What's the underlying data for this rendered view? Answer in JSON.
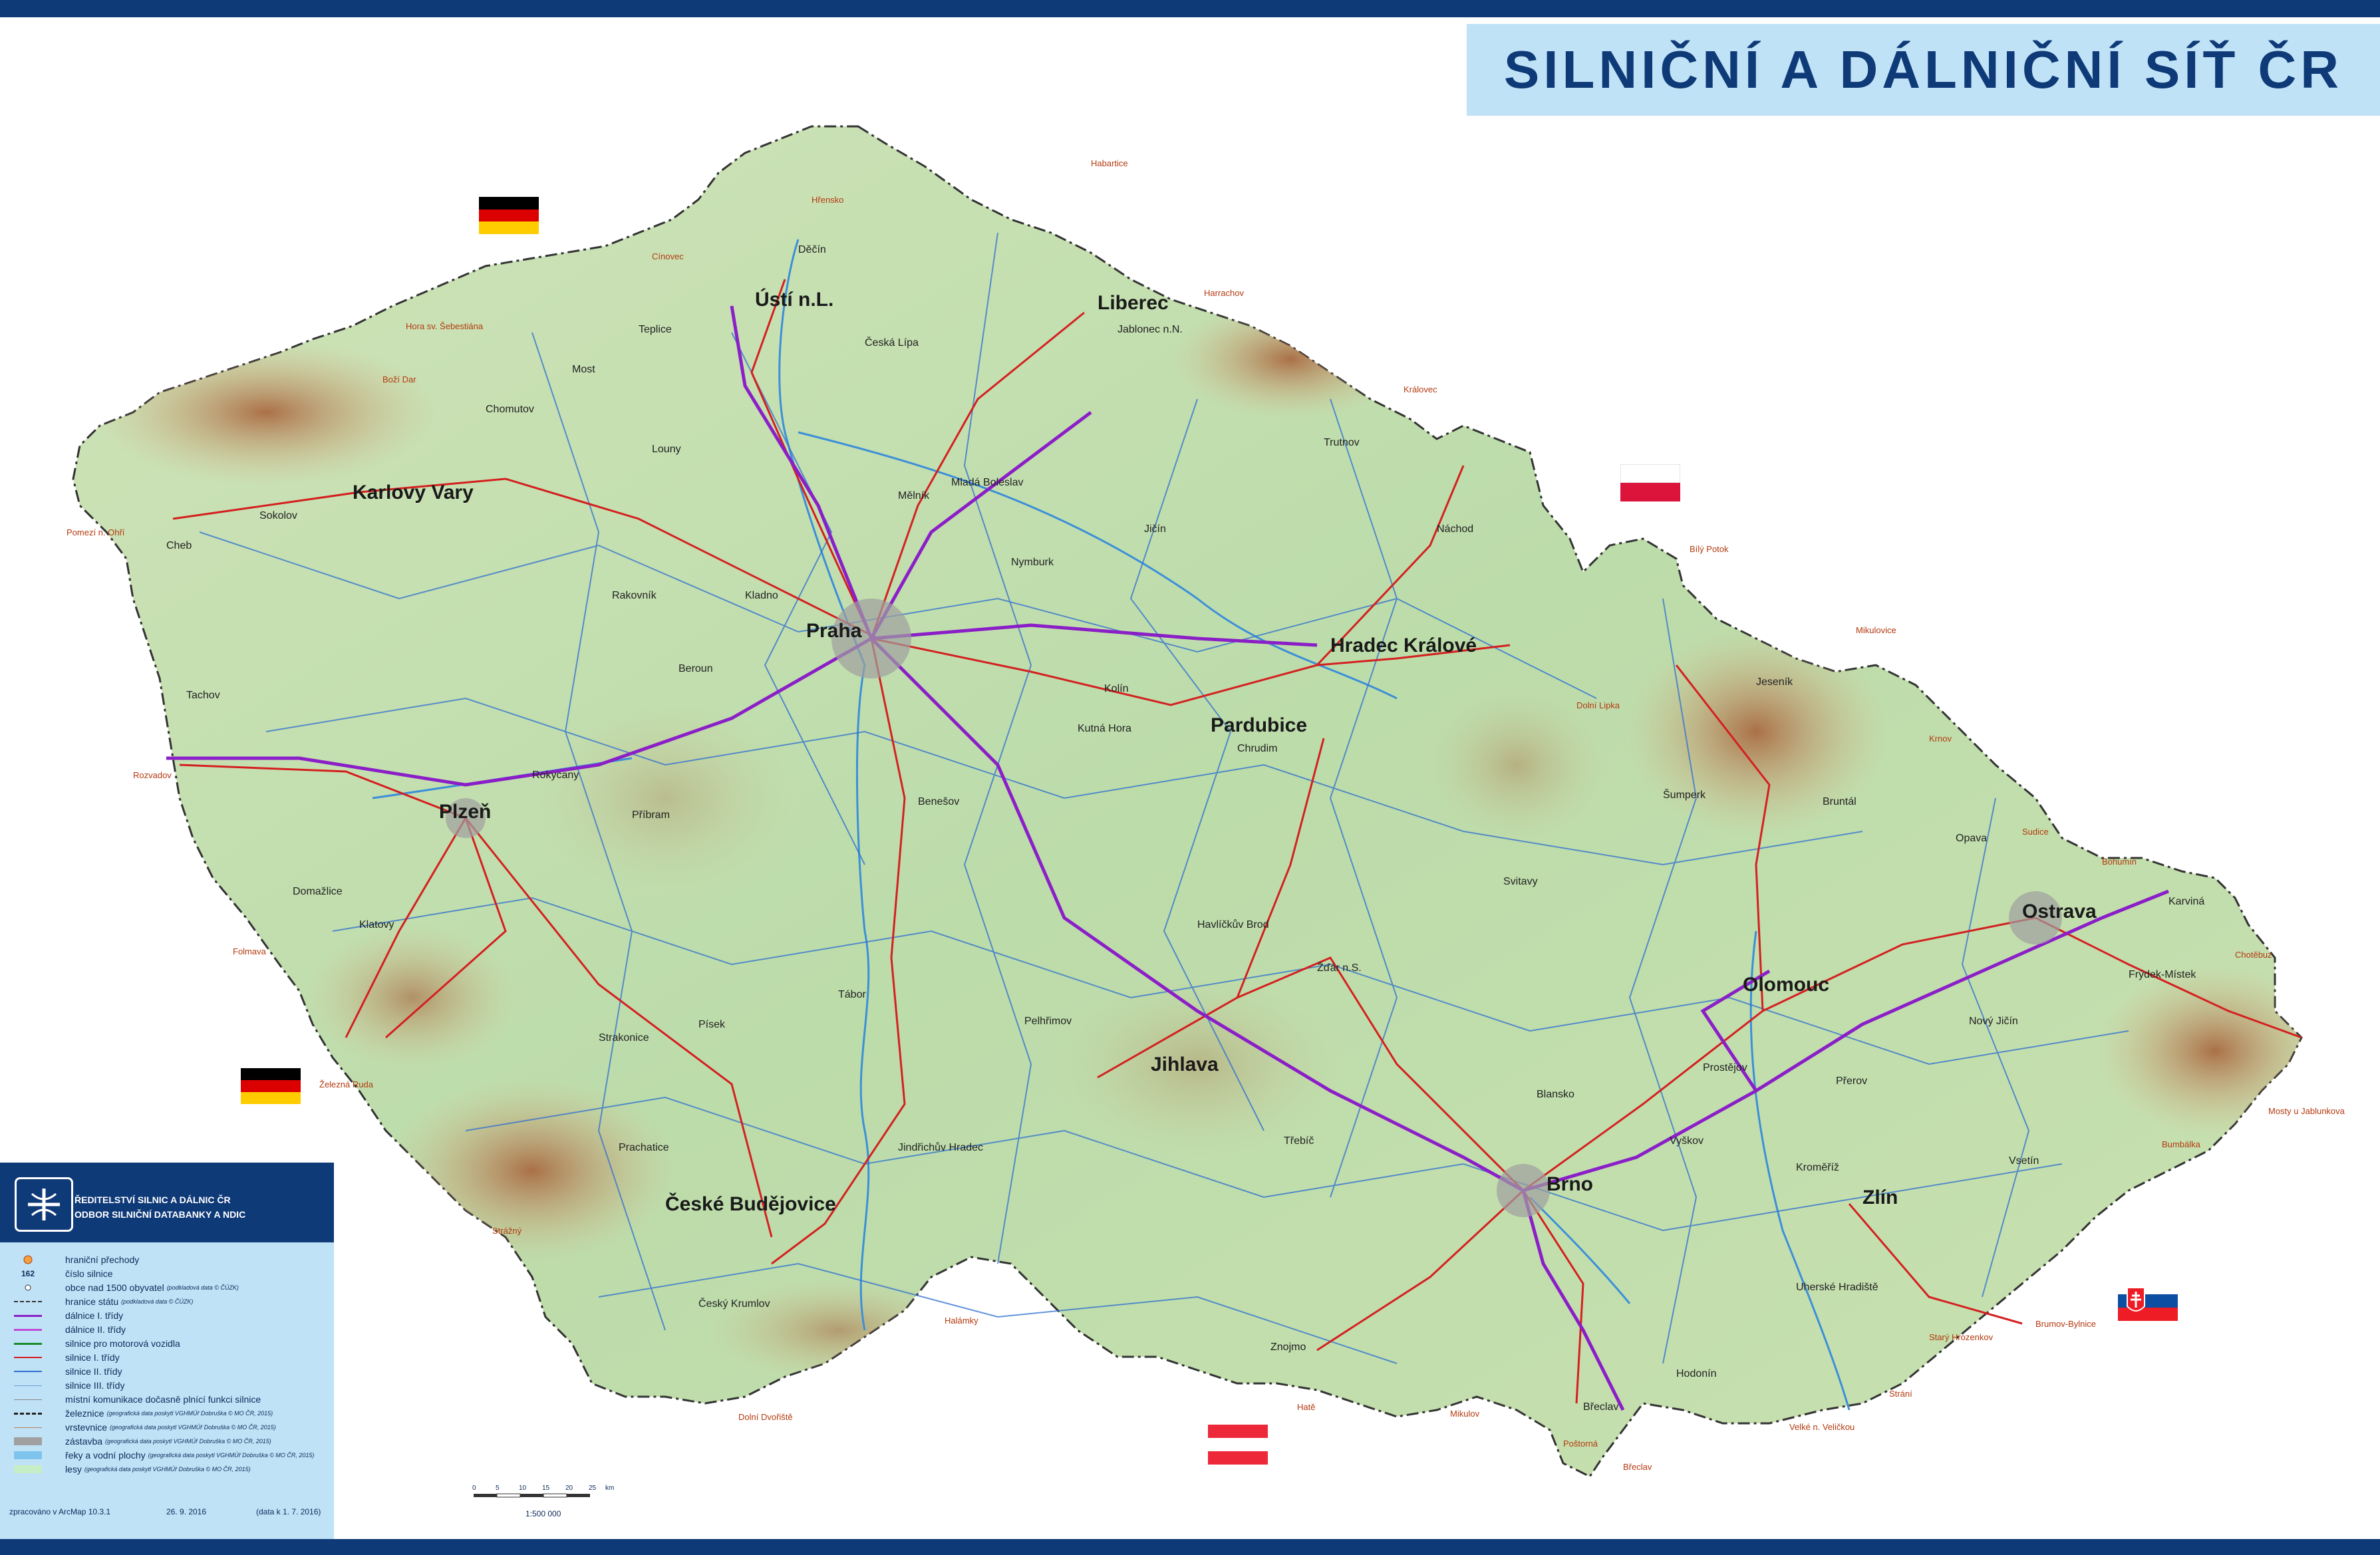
{
  "title": "SILNIČNÍ A DÁLNIČNÍ SÍŤ ČR",
  "colors": {
    "frame_blue": "#0f3a78",
    "title_background": "#bfe2f6",
    "motorway_purple": "#8b1fc7",
    "road_red": "#d42020",
    "road_blue": "#2f6fd0",
    "relief_green": "#b8d9a6",
    "relief_brown": "#b7825a"
  },
  "cities": [
    {
      "name": "Praha"
    },
    {
      "name": "Brno"
    },
    {
      "name": "Ostrava"
    },
    {
      "name": "Plzeň"
    },
    {
      "name": "Liberec"
    },
    {
      "name": "Olomouc"
    },
    {
      "name": "České Budějovice"
    },
    {
      "name": "Hradec Králové"
    },
    {
      "name": "Ústí n.L."
    },
    {
      "name": "Pardubice"
    },
    {
      "name": "Zlín"
    },
    {
      "name": "Jihlava"
    },
    {
      "name": "Karlovy Vary"
    }
  ],
  "towns": [
    "Chomutov",
    "Most",
    "Teplice",
    "Děčín",
    "Česká Lípa",
    "Mladá Boleslav",
    "Mělník",
    "Kladno",
    "Beroun",
    "Rakovník",
    "Louny",
    "Sokolov",
    "Cheb",
    "Tachov",
    "Rokycany",
    "Příbram",
    "Benešov",
    "Kolín",
    "Kutná Hora",
    "Nymburk",
    "Trutnov",
    "Náchod",
    "Jičín",
    "Chrudim",
    "Svitavy",
    "Šumperk",
    "Jeseník",
    "Bruntál",
    "Opava",
    "Karviná",
    "Frýdek-Místek",
    "Nový Jičín",
    "Vsetín",
    "Přerov",
    "Prostějov",
    "Kroměříž",
    "Uherské Hradiště",
    "Hodonín",
    "Břeclav",
    "Vyškov",
    "Blansko",
    "Znojmo",
    "Třebíč",
    "Havlíčkův Brod",
    "Žďár n.S.",
    "Pelhřimov",
    "Tábor",
    "Písek",
    "Strakonice",
    "Prachatice",
    "Český Krumlov",
    "Jindřichův Hradec",
    "Klatovy",
    "Domažlice",
    "Jablonec n.N."
  ],
  "border_crossings": [
    "Hora sv. Šebestiána",
    "Rozvadov",
    "Folmava",
    "Železná Ruda",
    "Strážný",
    "Dolní Dvořiště",
    "Halámky",
    "Hatě",
    "Mikulov",
    "Poštorná",
    "Břeclav",
    "Strání",
    "Velké n. Veličkou",
    "Starý Hrozenkov",
    "Brumov-Bylnice",
    "Bumbálka",
    "Mosty u Jablunkova",
    "Chotěbuz",
    "Bohumín",
    "Sudice",
    "Krnov",
    "Mikulovice",
    "Bílý Potok",
    "Královec",
    "Harrachov",
    "Habartice",
    "Hřensko",
    "Cínovec",
    "Pomezí n. Ohří",
    "Dolní Lipka",
    "Boží Dar"
  ],
  "flags": [
    {
      "country": "Germany",
      "colors": [
        "#000000",
        "#dd0000",
        "#ffcc00"
      ]
    },
    {
      "country": "Germany",
      "colors": [
        "#000000",
        "#dd0000",
        "#ffcc00"
      ]
    },
    {
      "country": "Poland",
      "colors": [
        "#ffffff",
        "#dc143c"
      ]
    },
    {
      "country": "Austria",
      "colors": [
        "#ed2939",
        "#ffffff",
        "#ed2939"
      ]
    },
    {
      "country": "Slovakia",
      "colors": [
        "#ffffff",
        "#0b4ea2",
        "#ee1c25"
      ]
    }
  ],
  "legend": {
    "org_line1": "ŘEDITELSTVÍ SILNIC A DÁLNIC ČR",
    "org_line2": "ODBOR SILNIČNÍ DATABANKY A NDIC",
    "items": [
      {
        "label": "hraniční přechody",
        "note": "",
        "symbol": "crossing-icon"
      },
      {
        "label": "číslo silnice",
        "note": "",
        "symbol": "road-number",
        "symbol_text": "162"
      },
      {
        "label": "obce nad 1500 obyvatel",
        "note": "(podkladová data © ČÚZK)",
        "symbol": "town-icon"
      },
      {
        "label": "hranice státu",
        "note": "(podkladová data © ČÚZK)",
        "symbol": "border-line"
      },
      {
        "label": "dálnice I. třídy",
        "note": "",
        "symbol": "motorway-1-line"
      },
      {
        "label": "dálnice II. třídy",
        "note": "",
        "symbol": "motorway-2-line"
      },
      {
        "label": "silnice pro motorová vozidla",
        "note": "",
        "symbol": "expressway-line"
      },
      {
        "label": "silnice I. třídy",
        "note": "",
        "symbol": "road-1-line"
      },
      {
        "label": "silnice II. třídy",
        "note": "",
        "symbol": "road-2-line"
      },
      {
        "label": "silnice III. třídy",
        "note": "",
        "symbol": "road-3-line"
      },
      {
        "label": "místní komunikace dočasně plnící funkci silnice",
        "note": "",
        "symbol": "local-road-line"
      },
      {
        "label": "železnice",
        "note": "(geografická data poskytl VGHMÚř Dobruška © MO ČR, 2015)",
        "symbol": "railway-line"
      },
      {
        "label": "vrstevnice",
        "note": "(geografická data poskytl VGHMÚř Dobruška © MO ČR, 2015)",
        "symbol": "contour-line"
      },
      {
        "label": "zástavba",
        "note": "(geografická data poskytl VGHMÚř Dobruška © MO ČR, 2015)",
        "symbol": "builtup-fill"
      },
      {
        "label": "řeky a vodní plochy",
        "note": "(geografická data poskytl VGHMÚř Dobruška © MO ČR, 2015)",
        "symbol": "water-fill"
      },
      {
        "label": "lesy",
        "note": "(geografická data poskytl VGHMÚř Dobruška © MO ČR, 2015)",
        "symbol": "forest-fill"
      }
    ],
    "footer": {
      "software": "zpracováno v ArcMap 10.3.1",
      "date": "26. 9. 2016",
      "data_date": "(data k 1. 7. 2016)"
    }
  },
  "scale_bar": {
    "ticks": [
      "0",
      "5",
      "10",
      "15",
      "20",
      "25",
      "km"
    ],
    "ratio": "1:500 000"
  }
}
